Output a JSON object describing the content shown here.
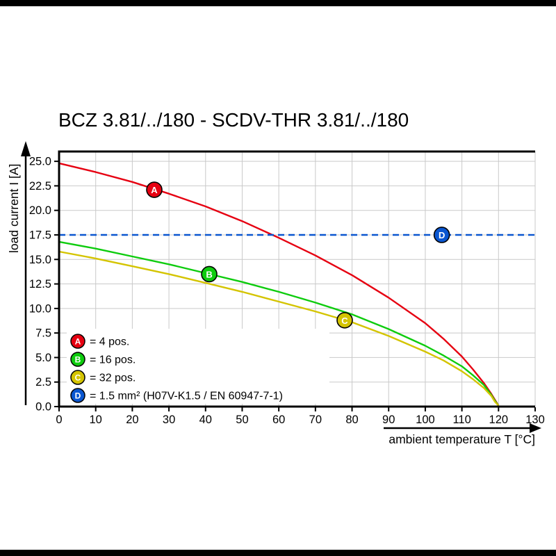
{
  "chart_data": {
    "type": "line",
    "title": "BCZ 3.81/../180 - SCDV-THR 3.81/../180",
    "xlabel": "ambient temperature T [°C]",
    "ylabel": "load current I [A]",
    "xlim": [
      0,
      130
    ],
    "ylim": [
      0,
      25
    ],
    "xticks": [
      0,
      10,
      20,
      30,
      40,
      50,
      60,
      70,
      80,
      90,
      100,
      110,
      120,
      130
    ],
    "yticks": [
      0.0,
      2.5,
      5.0,
      7.5,
      10.0,
      12.5,
      15.0,
      17.5,
      20.0,
      22.5,
      25.0
    ],
    "grid": true,
    "legend_position": "bottom-left-inside",
    "series": [
      {
        "id": "A",
        "label": "= 4 pos.",
        "color": "#e60011",
        "style": "solid",
        "marker_at": [
          26,
          22.1
        ],
        "points": [
          [
            0,
            24.8
          ],
          [
            10,
            23.9
          ],
          [
            20,
            22.9
          ],
          [
            30,
            21.7
          ],
          [
            40,
            20.4
          ],
          [
            50,
            18.9
          ],
          [
            60,
            17.2
          ],
          [
            70,
            15.4
          ],
          [
            80,
            13.4
          ],
          [
            90,
            11.1
          ],
          [
            100,
            8.5
          ],
          [
            105,
            6.9
          ],
          [
            110,
            5.1
          ],
          [
            113,
            3.8
          ],
          [
            116,
            2.4
          ],
          [
            118,
            1.3
          ],
          [
            119,
            0.7
          ],
          [
            120,
            0.1
          ]
        ]
      },
      {
        "id": "B",
        "label": "= 16 pos.",
        "color": "#0ecc0e",
        "style": "solid",
        "marker_at": [
          41,
          13.5
        ],
        "points": [
          [
            0,
            16.8
          ],
          [
            10,
            16.1
          ],
          [
            20,
            15.3
          ],
          [
            30,
            14.5
          ],
          [
            40,
            13.6
          ],
          [
            50,
            12.7
          ],
          [
            60,
            11.7
          ],
          [
            70,
            10.6
          ],
          [
            80,
            9.4
          ],
          [
            90,
            7.9
          ],
          [
            100,
            6.2
          ],
          [
            105,
            5.2
          ],
          [
            110,
            4.1
          ],
          [
            113,
            3.2
          ],
          [
            116,
            2.2
          ],
          [
            118,
            1.2
          ],
          [
            119,
            0.6
          ],
          [
            120,
            0.1
          ]
        ]
      },
      {
        "id": "C",
        "label": "= 32 pos.",
        "color": "#d4c400",
        "style": "solid",
        "marker_at": [
          78,
          8.8
        ],
        "points": [
          [
            0,
            15.8
          ],
          [
            10,
            15.1
          ],
          [
            20,
            14.3
          ],
          [
            30,
            13.5
          ],
          [
            40,
            12.6
          ],
          [
            50,
            11.7
          ],
          [
            60,
            10.7
          ],
          [
            70,
            9.7
          ],
          [
            80,
            8.6
          ],
          [
            90,
            7.2
          ],
          [
            100,
            5.6
          ],
          [
            105,
            4.7
          ],
          [
            110,
            3.6
          ],
          [
            113,
            2.8
          ],
          [
            116,
            1.9
          ],
          [
            118,
            1.1
          ],
          [
            119,
            0.5
          ],
          [
            120,
            0.1
          ]
        ]
      },
      {
        "id": "D",
        "label": "= 1.5 mm² (H07V-K1.5 / EN 60947-7-1)",
        "color": "#0a56d0",
        "style": "dashed",
        "marker_at": [
          104.5,
          17.5
        ],
        "points": [
          [
            0,
            17.5
          ],
          [
            130,
            17.5
          ]
        ]
      }
    ]
  }
}
